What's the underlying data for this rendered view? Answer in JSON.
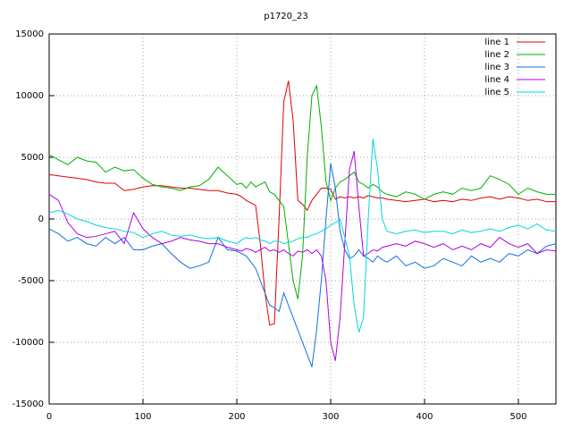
{
  "chart_data": {
    "type": "line",
    "title": "p1720_23",
    "x": [
      0,
      10,
      20,
      30,
      40,
      50,
      60,
      70,
      80,
      90,
      100,
      110,
      120,
      130,
      140,
      150,
      160,
      170,
      180,
      190,
      200,
      205,
      210,
      215,
      220,
      225,
      230,
      235,
      240,
      245,
      250,
      255,
      260,
      265,
      270,
      275,
      280,
      285,
      290,
      295,
      300,
      305,
      310,
      315,
      320,
      325,
      330,
      335,
      340,
      345,
      350,
      355,
      360,
      370,
      380,
      390,
      400,
      410,
      420,
      430,
      440,
      450,
      460,
      470,
      480,
      490,
      500,
      510,
      520,
      530,
      540
    ],
    "series": [
      {
        "name": "line 1",
        "color": "#e00000",
        "values": [
          3600,
          3500,
          3400,
          3300,
          3200,
          3000,
          2900,
          2900,
          2300,
          2400,
          2600,
          2700,
          2700,
          2600,
          2500,
          2500,
          2400,
          2300,
          2300,
          2100,
          2000,
          1800,
          1500,
          1300,
          1100,
          -2000,
          -6000,
          -8600,
          -8500,
          0,
          9500,
          11200,
          8000,
          1500,
          1200,
          700,
          1500,
          2000,
          2500,
          2500,
          2400,
          1600,
          1800,
          1700,
          1800,
          1700,
          1800,
          1700,
          1900,
          1800,
          1700,
          1700,
          1600,
          1500,
          1400,
          1500,
          1600,
          1400,
          1500,
          1400,
          1600,
          1500,
          1700,
          1800,
          1600,
          1800,
          1700,
          1500,
          1600,
          1400,
          1400
        ]
      },
      {
        "name": "line 2",
        "color": "#00b000",
        "values": [
          5200,
          4800,
          4400,
          5000,
          4700,
          4600,
          3800,
          4200,
          3900,
          4000,
          3300,
          2800,
          2600,
          2500,
          2300,
          2600,
          2700,
          3200,
          4200,
          3500,
          2800,
          2900,
          2500,
          3000,
          2600,
          2800,
          3000,
          2200,
          2000,
          1500,
          1000,
          -2000,
          -5000,
          -6500,
          -3000,
          5000,
          10000,
          10800,
          7500,
          3000,
          1500,
          2500,
          3000,
          3200,
          3500,
          3800,
          3000,
          2800,
          2500,
          2800,
          2600,
          2200,
          2000,
          1800,
          2200,
          2000,
          1600,
          2000,
          2200,
          2000,
          2500,
          2300,
          2500,
          3500,
          3200,
          2800,
          2000,
          2500,
          2200,
          2000,
          2000
        ]
      },
      {
        "name": "line 3",
        "color": "#1070e0",
        "values": [
          -800,
          -1200,
          -1800,
          -1500,
          -2000,
          -2200,
          -1500,
          -2000,
          -1500,
          -2500,
          -2500,
          -2200,
          -2000,
          -2800,
          -3500,
          -4000,
          -3800,
          -3500,
          -1500,
          -2500,
          -2600,
          -2800,
          -3000,
          -3500,
          -4000,
          -5000,
          -6000,
          -7000,
          -7200,
          -7500,
          -6000,
          -7000,
          -8000,
          -9000,
          -10000,
          -11000,
          -12000,
          -9000,
          -5000,
          0,
          4500,
          2500,
          -1000,
          -2500,
          -3200,
          -3000,
          -2500,
          -3000,
          -3200,
          -3500,
          -3000,
          -3300,
          -3500,
          -3000,
          -3800,
          -3500,
          -4000,
          -3800,
          -3200,
          -3500,
          -3800,
          -3000,
          -3500,
          -3200,
          -3500,
          -2800,
          -3000,
          -2500,
          -2800,
          -2200,
          -2000
        ]
      },
      {
        "name": "line 4",
        "color": "#b000e0",
        "values": [
          2000,
          1500,
          -300,
          -1200,
          -1500,
          -1400,
          -1200,
          -1000,
          -2000,
          500,
          -800,
          -1500,
          -2000,
          -1800,
          -1500,
          -1700,
          -1800,
          -2000,
          -2000,
          -2300,
          -2500,
          -2600,
          -2400,
          -2500,
          -2700,
          -2500,
          -2300,
          -2600,
          -2500,
          -2700,
          -2500,
          -2800,
          -3000,
          -2600,
          -2700,
          -2500,
          -2800,
          -2500,
          -3000,
          -5000,
          -10000,
          -11500,
          -8000,
          -2000,
          4000,
          5500,
          1000,
          -3000,
          -2800,
          -2500,
          -2600,
          -2300,
          -2200,
          -2000,
          -2200,
          -1800,
          -2000,
          -2300,
          -2000,
          -2500,
          -2200,
          -2500,
          -2000,
          -2300,
          -1500,
          -2000,
          -2300,
          -2000,
          -2800,
          -2500,
          -2600
        ]
      },
      {
        "name": "line 5",
        "color": "#00d8d8",
        "values": [
          500,
          700,
          400,
          0,
          -200,
          -500,
          -700,
          -800,
          -1000,
          -1100,
          -1500,
          -1200,
          -1000,
          -1300,
          -1400,
          -1300,
          -1500,
          -1600,
          -1500,
          -1800,
          -2000,
          -1700,
          -1500,
          -1600,
          -1500,
          -1700,
          -1800,
          -2000,
          -1800,
          -1800,
          -2000,
          -1900,
          -1800,
          -1600,
          -1500,
          -1500,
          -1300,
          -1200,
          -1000,
          -800,
          -500,
          -300,
          0,
          -1500,
          -3000,
          -7000,
          -9200,
          -8000,
          0,
          6500,
          4000,
          0,
          -1000,
          -1200,
          -1000,
          -900,
          -1100,
          -1000,
          -1000,
          -1200,
          -900,
          -1100,
          -1000,
          -800,
          -1000,
          -700,
          -500,
          -800,
          -400,
          -900,
          -1000
        ]
      }
    ],
    "xlim": [
      0,
      540
    ],
    "ylim": [
      -15000,
      15000
    ],
    "xticks": [
      0,
      100,
      200,
      300,
      400,
      500
    ],
    "yticks": [
      -15000,
      -10000,
      -5000,
      0,
      5000,
      10000,
      15000
    ],
    "grid": true,
    "legend": "top-right"
  }
}
